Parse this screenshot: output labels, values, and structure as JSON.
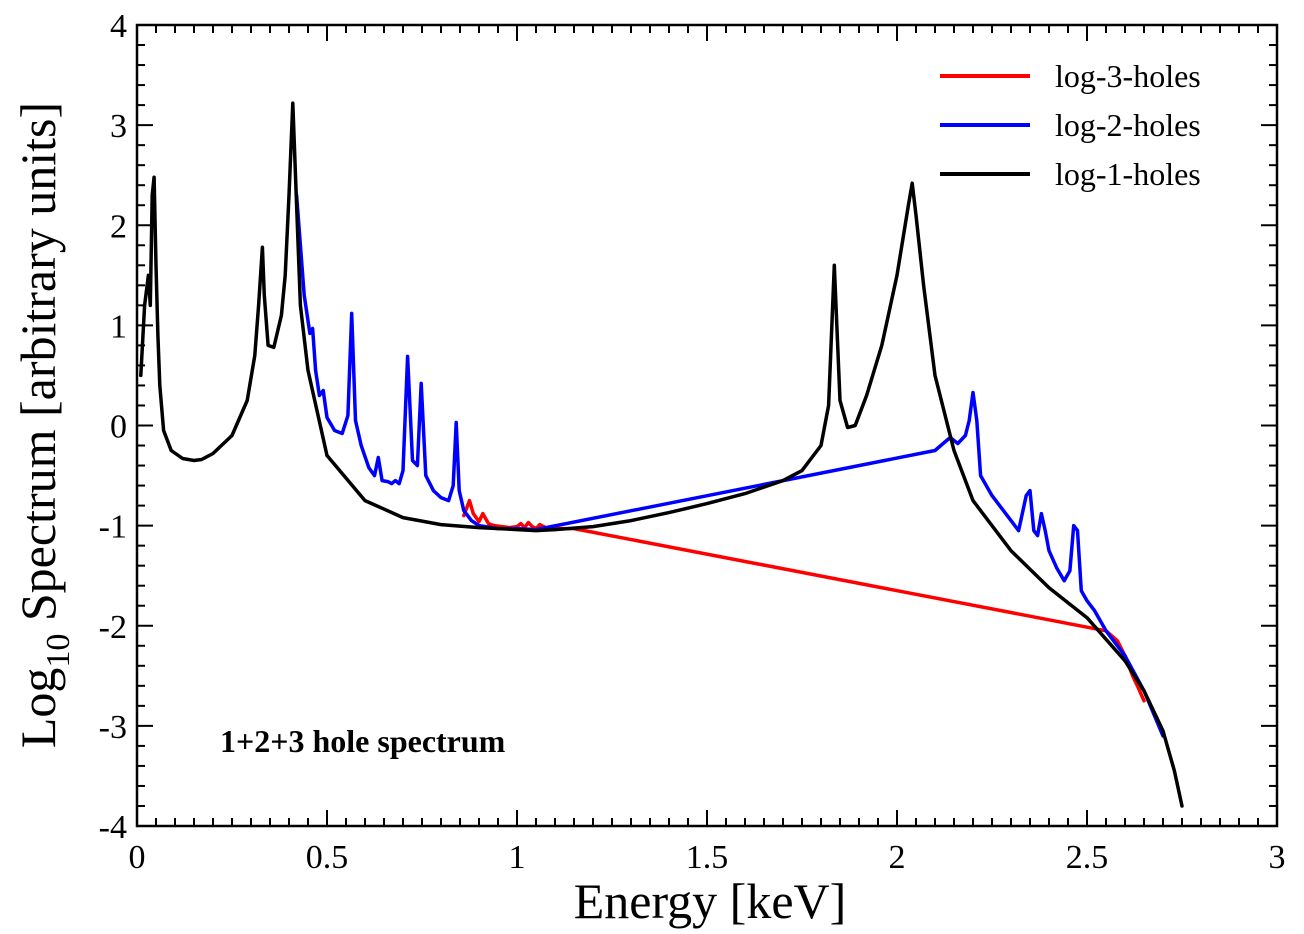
{
  "chart_data": {
    "type": "line",
    "xlabel": "Energy [keV]",
    "ylabel": {
      "prefix": "Log",
      "subscript": "10",
      "suffix": " Spectrum [arbitrary units]"
    },
    "xlim": [
      0,
      3
    ],
    "ylim": [
      -4,
      4
    ],
    "x_ticks": [
      "0",
      "0.5",
      "1",
      "1.5",
      "2",
      "2.5",
      "3"
    ],
    "y_ticks": [
      "-4",
      "-3",
      "-2",
      "-1",
      "0",
      "1",
      "2",
      "3",
      "4"
    ],
    "grid": false,
    "legend_position": "top-right",
    "annotation": "1+2+3 hole spectrum",
    "series": [
      {
        "name": "log-3-holes",
        "color": "#ff0000",
        "x": [
          0.86,
          0.875,
          0.885,
          0.9,
          0.91,
          0.925,
          0.94,
          0.96,
          0.98,
          1.0,
          1.01,
          1.02,
          1.03,
          1.04,
          1.05,
          1.06,
          1.08,
          1.1,
          1.12,
          1.15,
          2.55,
          2.58,
          2.6,
          2.62,
          2.635,
          2.65
        ],
        "y": [
          -0.9,
          -0.75,
          -0.88,
          -0.96,
          -0.88,
          -0.98,
          -1.0,
          -1.01,
          -1.02,
          -1.01,
          -0.98,
          -1.02,
          -0.97,
          -1.01,
          -1.03,
          -0.99,
          -1.03,
          -1.03,
          -1.03,
          -1.03,
          -2.05,
          -2.15,
          -2.3,
          -2.5,
          -2.62,
          -2.75
        ]
      },
      {
        "name": "log-2-holes",
        "color": "#0000ff",
        "x": [
          0.42,
          0.44,
          0.455,
          0.462,
          0.47,
          0.48,
          0.49,
          0.5,
          0.52,
          0.54,
          0.555,
          0.565,
          0.575,
          0.59,
          0.61,
          0.625,
          0.635,
          0.645,
          0.66,
          0.67,
          0.68,
          0.69,
          0.7,
          0.712,
          0.725,
          0.738,
          0.748,
          0.76,
          0.78,
          0.8,
          0.82,
          0.832,
          0.84,
          0.848,
          0.86,
          0.88,
          0.9,
          0.95,
          1.0,
          1.05,
          2.1,
          2.14,
          2.16,
          2.18,
          2.19,
          2.2,
          2.21,
          2.22,
          2.25,
          2.28,
          2.3,
          2.32,
          2.34,
          2.35,
          2.36,
          2.37,
          2.38,
          2.39,
          2.4,
          2.42,
          2.44,
          2.455,
          2.465,
          2.475,
          2.485,
          2.5,
          2.52,
          2.55,
          2.6,
          2.65,
          2.7
        ],
        "y": [
          2.3,
          1.3,
          0.92,
          0.97,
          0.55,
          0.3,
          0.35,
          0.08,
          -0.05,
          -0.08,
          0.1,
          1.12,
          0.05,
          -0.2,
          -0.42,
          -0.5,
          -0.32,
          -0.55,
          -0.56,
          -0.58,
          -0.55,
          -0.58,
          -0.45,
          0.69,
          -0.35,
          -0.4,
          0.42,
          -0.5,
          -0.65,
          -0.72,
          -0.75,
          -0.6,
          0.03,
          -0.65,
          -0.85,
          -0.95,
          -1.0,
          -1.03,
          -1.03,
          -1.04,
          -0.25,
          -0.12,
          -0.18,
          -0.1,
          0.05,
          0.33,
          0.05,
          -0.5,
          -0.7,
          -0.85,
          -0.95,
          -1.05,
          -0.7,
          -0.65,
          -1.05,
          -1.1,
          -0.88,
          -1.05,
          -1.25,
          -1.42,
          -1.55,
          -1.45,
          -1.0,
          -1.05,
          -1.65,
          -1.75,
          -1.85,
          -2.05,
          -2.3,
          -2.65,
          -3.1
        ]
      },
      {
        "name": "log-1-holes",
        "color": "#000000",
        "x": [
          0.01,
          0.02,
          0.03,
          0.035,
          0.04,
          0.045,
          0.05,
          0.055,
          0.06,
          0.07,
          0.09,
          0.12,
          0.15,
          0.17,
          0.2,
          0.25,
          0.29,
          0.31,
          0.32,
          0.33,
          0.335,
          0.345,
          0.36,
          0.38,
          0.39,
          0.4,
          0.41,
          0.42,
          0.43,
          0.45,
          0.5,
          0.6,
          0.7,
          0.8,
          0.9,
          1.0,
          1.05,
          1.1,
          1.2,
          1.3,
          1.4,
          1.5,
          1.6,
          1.7,
          1.75,
          1.8,
          1.82,
          1.835,
          1.85,
          1.87,
          1.89,
          1.92,
          1.96,
          2.0,
          2.03,
          2.04,
          2.05,
          2.07,
          2.1,
          2.15,
          2.2,
          2.3,
          2.4,
          2.5,
          2.6,
          2.65,
          2.7,
          2.73,
          2.75
        ],
        "y": [
          0.5,
          1.2,
          1.5,
          1.2,
          2.3,
          2.48,
          1.6,
          0.9,
          0.4,
          -0.05,
          -0.25,
          -0.33,
          -0.35,
          -0.34,
          -0.28,
          -0.1,
          0.25,
          0.7,
          1.2,
          1.78,
          1.3,
          0.8,
          0.78,
          1.1,
          1.5,
          2.3,
          3.22,
          2.2,
          1.2,
          0.55,
          -0.3,
          -0.75,
          -0.92,
          -0.99,
          -1.02,
          -1.04,
          -1.05,
          -1.04,
          -1.01,
          -0.95,
          -0.87,
          -0.78,
          -0.68,
          -0.55,
          -0.45,
          -0.2,
          0.2,
          1.6,
          0.25,
          -0.02,
          0.0,
          0.3,
          0.8,
          1.5,
          2.2,
          2.42,
          2.1,
          1.4,
          0.5,
          -0.25,
          -0.75,
          -1.25,
          -1.62,
          -1.92,
          -2.35,
          -2.65,
          -3.05,
          -3.45,
          -3.8
        ]
      }
    ]
  }
}
